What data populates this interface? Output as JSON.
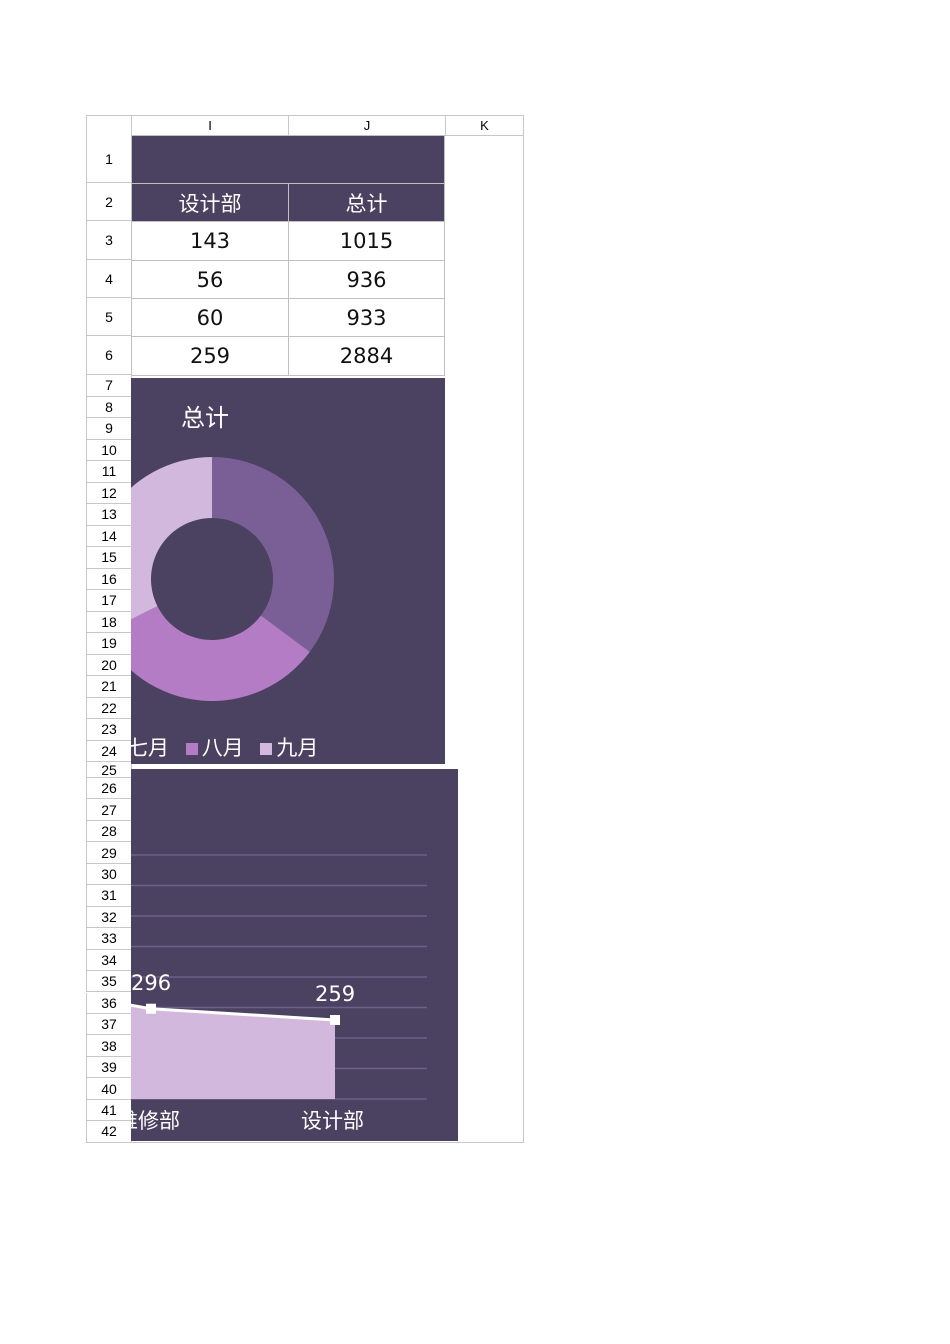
{
  "columns": [
    "I",
    "J",
    "K"
  ],
  "rows": [
    "1",
    "2",
    "3",
    "4",
    "5",
    "6",
    "7",
    "8",
    "9",
    "10",
    "11",
    "12",
    "13",
    "14",
    "15",
    "16",
    "17",
    "18",
    "19",
    "20",
    "21",
    "22",
    "23",
    "24",
    "25",
    "26",
    "27",
    "28",
    "29",
    "30",
    "31",
    "32",
    "33",
    "34",
    "35",
    "36",
    "37",
    "38",
    "39",
    "40",
    "41",
    "42"
  ],
  "table": {
    "headers": [
      "设计部",
      "总计"
    ],
    "data": [
      [
        "143",
        "1015"
      ],
      [
        "56",
        "936"
      ],
      [
        "60",
        "933"
      ],
      [
        "259",
        "2884"
      ]
    ]
  },
  "colors": {
    "panel": "#4b4160",
    "slice1": "#7a5f96",
    "slice2": "#b57cc6",
    "slice3": "#d3b8dd",
    "area": "#d3b8dd",
    "grid": "#6f5f8c"
  },
  "chart_data": [
    {
      "type": "pie",
      "title": "总计",
      "donut": true,
      "categories": [
        "七月",
        "八月",
        "九月"
      ],
      "values": [
        1015,
        936,
        933
      ],
      "legend": [
        "七月",
        "八月",
        "九月"
      ],
      "legend_position": "bottom"
    },
    {
      "type": "area",
      "categories": [
        "维修部",
        "设计部"
      ],
      "values": [
        296,
        259
      ],
      "data_labels": [
        "296",
        "259"
      ],
      "ylim": [
        0,
        800
      ],
      "grid": true
    }
  ]
}
